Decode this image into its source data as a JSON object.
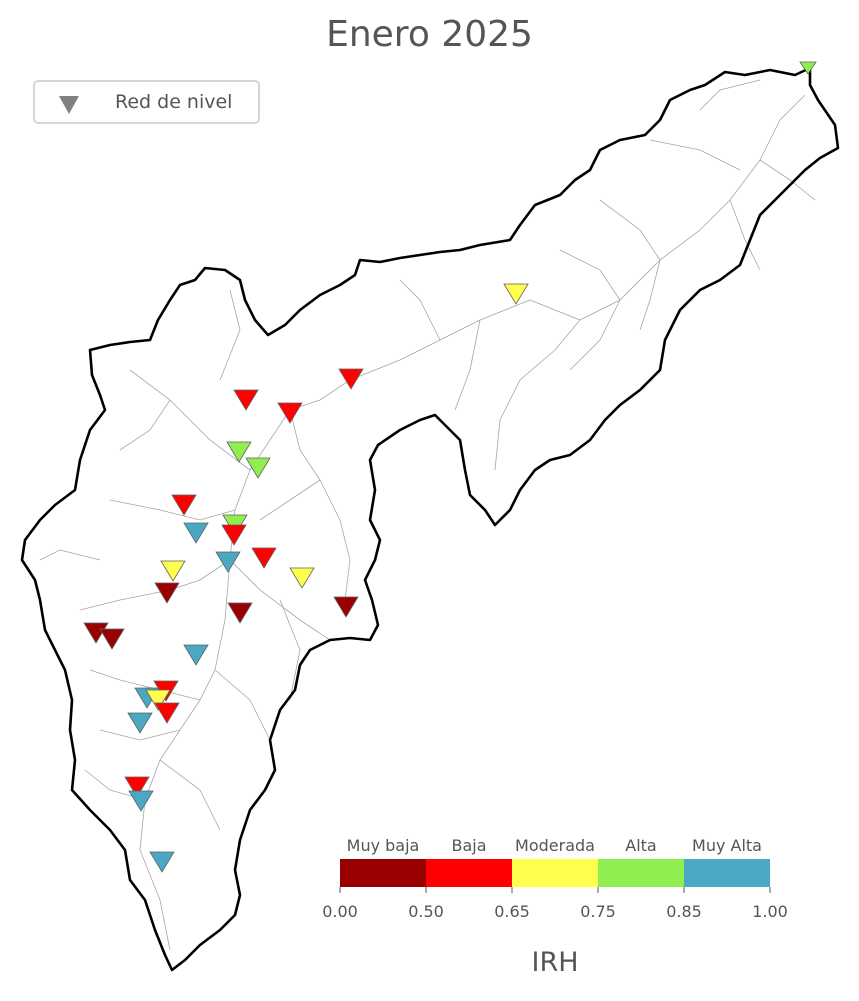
{
  "title": "Enero 2025",
  "legend": {
    "label": "Red de nivel",
    "marker_color": "#808080"
  },
  "colorbar": {
    "label": "IRH",
    "categories": [
      {
        "name": "Muy baja",
        "color": "#990000",
        "from": 0.0,
        "to": 0.5
      },
      {
        "name": "Baja",
        "color": "#ff0000",
        "from": 0.5,
        "to": 0.65
      },
      {
        "name": "Moderada",
        "color": "#ffff4d",
        "from": 0.65,
        "to": 0.75
      },
      {
        "name": "Alta",
        "color": "#90ee50",
        "from": 0.75,
        "to": 0.85
      },
      {
        "name": "Muy Alta",
        "color": "#4ba8c2",
        "from": 0.85,
        "to": 1.0
      }
    ],
    "ticks": [
      "0.00",
      "0.50",
      "0.65",
      "0.75",
      "0.85",
      "1.00"
    ]
  },
  "stations_by_category": {
    "Muy baja": 6,
    "Baja": 11,
    "Moderada": 4,
    "Alta": 5,
    "Muy Alta": 7
  }
}
